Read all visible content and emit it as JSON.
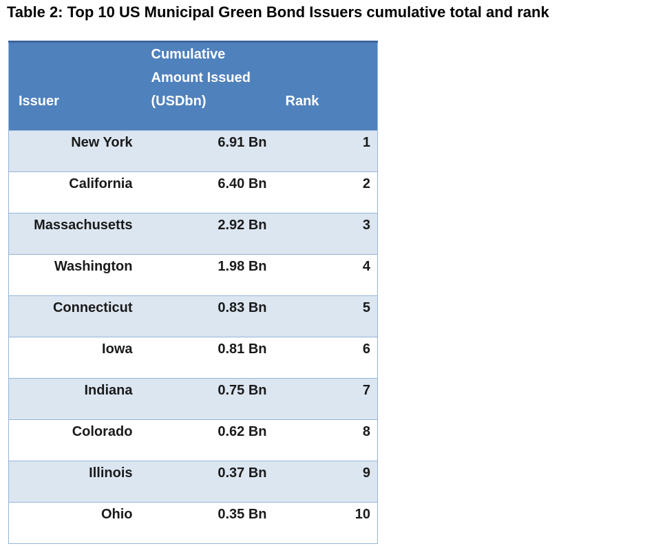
{
  "title": "Table 2: Top 10 US Municipal Green Bond Issuers cumulative total and rank",
  "table": {
    "headers": {
      "issuer": "Issuer",
      "amount": "Cumulative\nAmount Issued\n(USDbn)",
      "rank": "Rank"
    },
    "rows": [
      {
        "issuer": "New York",
        "amount": "6.91 Bn",
        "rank": "1"
      },
      {
        "issuer": "California",
        "amount": "6.40 Bn",
        "rank": "2"
      },
      {
        "issuer": "Massachusetts",
        "amount": "2.92 Bn",
        "rank": "3"
      },
      {
        "issuer": "Washington",
        "amount": "1.98 Bn",
        "rank": "4"
      },
      {
        "issuer": "Connecticut",
        "amount": "0.83 Bn",
        "rank": "5"
      },
      {
        "issuer": "Iowa",
        "amount": "0.81 Bn",
        "rank": "6"
      },
      {
        "issuer": "Indiana",
        "amount": "0.75 Bn",
        "rank": "7"
      },
      {
        "issuer": "Colorado",
        "amount": "0.62 Bn",
        "rank": "8"
      },
      {
        "issuer": "Illinois",
        "amount": "0.37 Bn",
        "rank": "9"
      },
      {
        "issuer": "Ohio",
        "amount": "0.35 Bn",
        "rank": "10"
      }
    ],
    "colors": {
      "header_bg": "#4F81BD",
      "header_text": "#FFFFFF",
      "row_alt_bg": "#DCE6F1",
      "row_bg": "#FFFFFF",
      "border": "#95B3D7",
      "header_top_border": "#3C649B",
      "body_text": "#1A1A1A",
      "title_text": "#000000",
      "page_bg": "#FFFFFF"
    }
  },
  "chart_data": {
    "type": "table",
    "title": "Table 2: Top 10 US Municipal Green Bond Issuers cumulative total and rank",
    "columns": [
      "Issuer",
      "Cumulative Amount Issued (USDbn)",
      "Rank"
    ],
    "rows": [
      [
        "New York",
        6.91,
        1
      ],
      [
        "California",
        6.4,
        2
      ],
      [
        "Massachusetts",
        2.92,
        3
      ],
      [
        "Washington",
        1.98,
        4
      ],
      [
        "Connecticut",
        0.83,
        5
      ],
      [
        "Iowa",
        0.81,
        6
      ],
      [
        "Indiana",
        0.75,
        7
      ],
      [
        "Colorado",
        0.62,
        8
      ],
      [
        "Illinois",
        0.37,
        9
      ],
      [
        "Ohio",
        0.35,
        10
      ]
    ]
  }
}
